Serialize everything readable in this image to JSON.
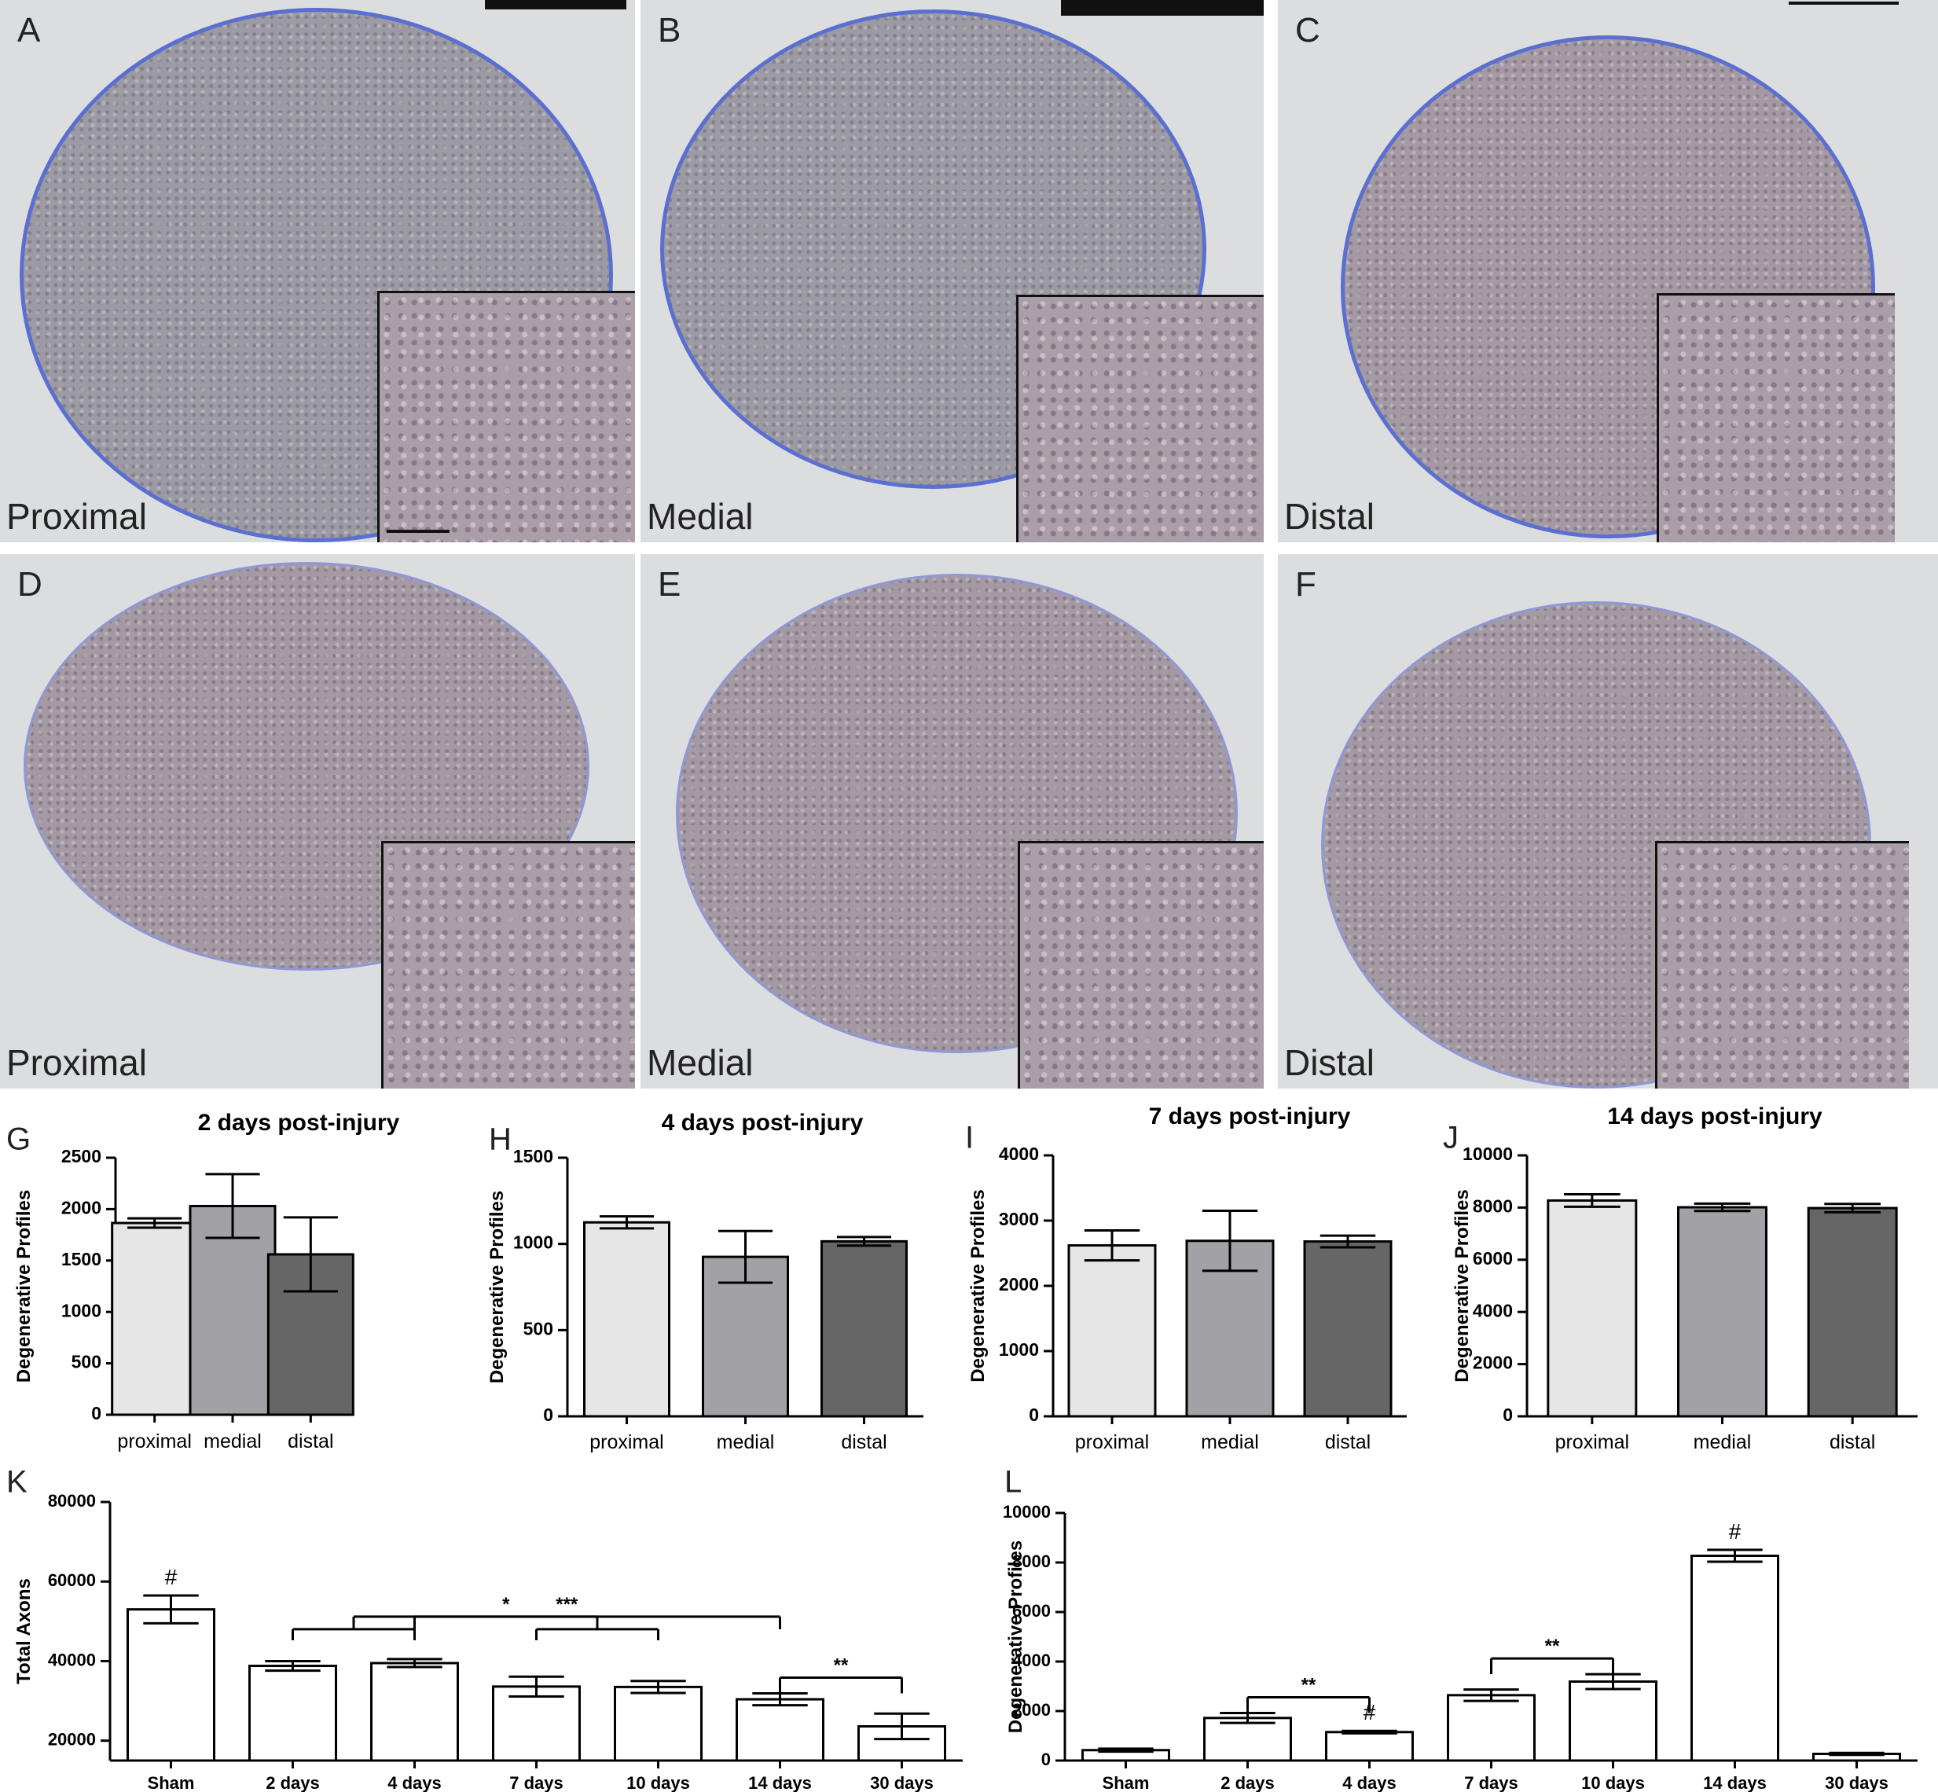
{
  "micrographs": [
    {
      "letter": "A",
      "caption": "Proximal"
    },
    {
      "letter": "B",
      "caption": "Medial"
    },
    {
      "letter": "C",
      "caption": "Distal"
    },
    {
      "letter": "D",
      "caption": "Proximal"
    },
    {
      "letter": "E",
      "caption": "Medial"
    },
    {
      "letter": "F",
      "caption": "Distal"
    }
  ],
  "colors": {
    "proximal": "#e6e6e6",
    "medial": "#a2a2a6",
    "distal": "#666666",
    "open_bar": "#ffffff",
    "stroke": "#000000"
  },
  "chart_data": [
    {
      "letter": "G",
      "type": "bar",
      "title": "2 days post-injury",
      "ylabel": "Degenerative Profiles",
      "ylim": [
        0,
        2500
      ],
      "yticks": [
        "0",
        "500",
        "1000",
        "1500",
        "2000",
        "2500"
      ],
      "categories": [
        "proximal",
        "medial",
        "distal"
      ],
      "values": [
        1865,
        2030,
        1560
      ],
      "errors": [
        45,
        310,
        360
      ]
    },
    {
      "letter": "H",
      "type": "bar",
      "title": "4 days post-injury",
      "ylabel": "Degenerative Profiles",
      "ylim": [
        0,
        1500
      ],
      "yticks": [
        "0",
        "500",
        "1000",
        "1500"
      ],
      "categories": [
        "proximal",
        "medial",
        "distal"
      ],
      "values": [
        1125,
        925,
        1015
      ],
      "errors": [
        35,
        150,
        25
      ]
    },
    {
      "letter": "I",
      "type": "bar",
      "title": "7 days post-injury",
      "ylabel": "Degenerative Profiles",
      "ylim": [
        0,
        4000
      ],
      "yticks": [
        "0",
        "1000",
        "2000",
        "3000",
        "4000"
      ],
      "categories": [
        "proximal",
        "medial",
        "distal"
      ],
      "values": [
        2620,
        2690,
        2680
      ],
      "errors": [
        230,
        460,
        90
      ]
    },
    {
      "letter": "J",
      "type": "bar",
      "title": "14 days post-injury",
      "ylabel": "Degenerative Profiles",
      "ylim": [
        0,
        10000
      ],
      "yticks": [
        "0",
        "2000",
        "4000",
        "6000",
        "8000",
        "10000"
      ],
      "categories": [
        "proximal",
        "medial",
        "distal"
      ],
      "values": [
        8270,
        8010,
        7980
      ],
      "errors": [
        240,
        140,
        160
      ]
    },
    {
      "letter": "K",
      "type": "bar",
      "title": "",
      "ylabel": "Total Axons",
      "ylim": [
        15000,
        80000
      ],
      "yticks": [
        "20000",
        "40000",
        "60000",
        "80000"
      ],
      "categories": [
        "Sham",
        "2 days",
        "4 days",
        "7 days",
        "10 days",
        "14 days",
        "30 days"
      ],
      "values": [
        53000,
        38800,
        39500,
        33600,
        33500,
        30400,
        23600
      ],
      "errors": [
        3500,
        1200,
        1000,
        2500,
        1500,
        1500,
        3200
      ],
      "annotations": [
        {
          "text": "#",
          "category": "Sham"
        },
        {
          "text": "***",
          "from": [
            "2 days",
            "4 days"
          ],
          "to": "14 days"
        },
        {
          "text": "*",
          "from": [
            "4 days"
          ],
          "to": [
            "7 days",
            "10 days"
          ]
        },
        {
          "text": "**",
          "from": [
            "14 days"
          ],
          "to": "30 days"
        }
      ]
    },
    {
      "letter": "L",
      "type": "bar",
      "title": "",
      "ylabel": "Degenerative Profiles",
      "ylim": [
        0,
        10000
      ],
      "yticks": [
        "0",
        "2000",
        "4000",
        "6000",
        "8000",
        "10000"
      ],
      "categories": [
        "Sham",
        "2 days",
        "4 days",
        "7 days",
        "10 days",
        "14 days",
        "30 days"
      ],
      "values": [
        420,
        1720,
        1150,
        2640,
        3190,
        8270,
        270
      ],
      "errors": [
        60,
        200,
        50,
        230,
        300,
        240,
        40
      ],
      "annotations": [
        {
          "text": "#",
          "category": "4 days"
        },
        {
          "text": "#",
          "category": "14 days"
        },
        {
          "text": "**",
          "from": "2 days",
          "to": "4 days"
        },
        {
          "text": "**",
          "from": "7 days",
          "to": "10 days"
        }
      ]
    }
  ]
}
